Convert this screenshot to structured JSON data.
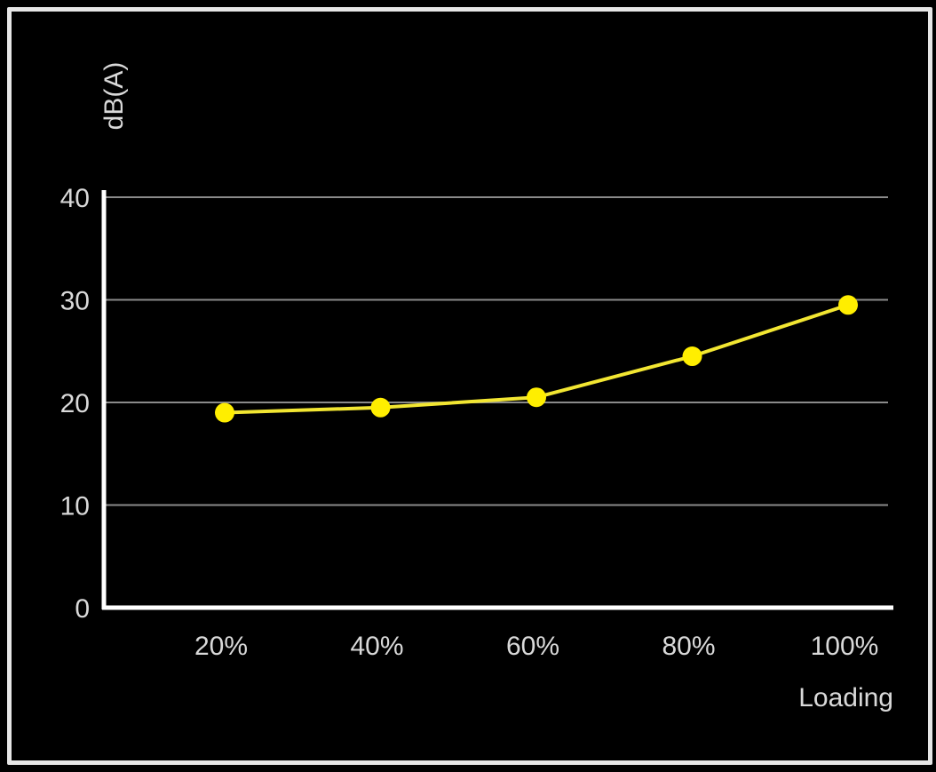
{
  "chart_data": {
    "type": "line",
    "title": "",
    "xlabel": "Loading",
    "ylabel": "dB(A)",
    "categories": [
      "20%",
      "40%",
      "60%",
      "80%",
      "100%"
    ],
    "series": [
      {
        "values": [
          19,
          19.5,
          20.5,
          24.5,
          29.5
        ]
      }
    ],
    "ylim": [
      0,
      40
    ],
    "yticks": [
      0,
      10,
      20,
      30,
      40
    ],
    "grid": true,
    "colors": {
      "background": "#000000",
      "line": "#f2e632",
      "marker": "#ffee00",
      "grid": "#8a8a8a",
      "axis": "#ffffff",
      "text": "#d9d9d9",
      "frame": "#e6e6e6"
    }
  }
}
